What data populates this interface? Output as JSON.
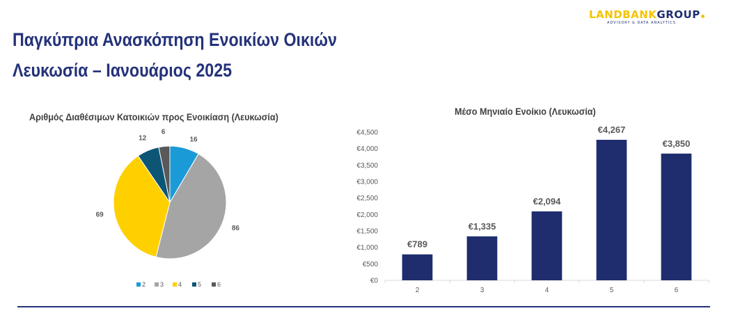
{
  "header": {
    "title_line1": "Παγκύπρια Ανασκόπηση Ενοικίων Οικιών",
    "title_line2": "Λευκωσία – Ιανουάριος 2025"
  },
  "logo": {
    "main_left": "LANDBANK",
    "main_right": "GROUP",
    "tagline": "ADVISORY & DATA ANALYTICS",
    "colors": {
      "yellow": "#f4c400",
      "navy": "#1e2f6e"
    }
  },
  "chart_data": [
    {
      "type": "pie",
      "title": "Αριθμός Διαθέσιμων Κατοικιών προς Ενοικίαση (Λευκωσία)",
      "categories": [
        "2",
        "3",
        "4",
        "5",
        "6"
      ],
      "values": [
        16,
        86,
        69,
        12,
        6
      ],
      "data_labels": [
        "16",
        "86",
        "69",
        "12",
        "6"
      ],
      "colors": [
        "#1a9bd7",
        "#a5a5a5",
        "#ffd000",
        "#0d5575",
        "#595959"
      ],
      "legend": "bottom"
    },
    {
      "type": "bar",
      "title": "Μέσο Μηνιαίο Ενοίκιο (Λευκωσία)",
      "categories": [
        "2",
        "3",
        "4",
        "5",
        "6"
      ],
      "values": [
        789,
        1335,
        2094,
        4267,
        3850
      ],
      "data_labels": [
        "€789",
        "€1,335",
        "€2,094",
        "€4,267",
        "€3,850"
      ],
      "ylim": [
        0,
        4500
      ],
      "yticks": [
        0,
        500,
        1000,
        1500,
        2000,
        2500,
        3000,
        3500,
        4000,
        4500
      ],
      "ytick_labels": [
        "€0",
        "€500",
        "€1,000",
        "€1,500",
        "€2,000",
        "€2,500",
        "€3,000",
        "€3,500",
        "€4,000",
        "€4,500"
      ],
      "bar_color": "#1f2d6e",
      "grid": false
    }
  ]
}
